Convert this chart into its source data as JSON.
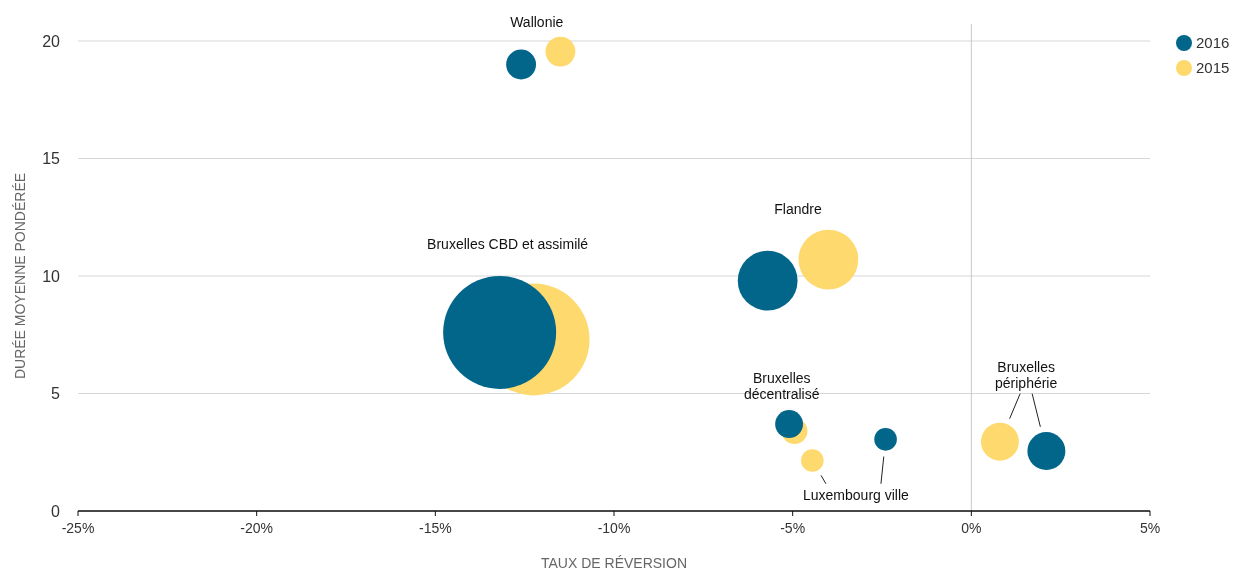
{
  "chart_data": {
    "type": "bubble",
    "xlabel": "TAUX DE RÉVERSION",
    "ylabel": "DURÉE MOYENNE PONDÉRÉE",
    "xlim": [
      -25,
      5
    ],
    "xticks": [
      {
        "value": -25,
        "label": "-25%"
      },
      {
        "value": -20,
        "label": "-20%"
      },
      {
        "value": -15,
        "label": "-15%"
      },
      {
        "value": -10,
        "label": "-10%"
      },
      {
        "value": -5,
        "label": "-5%"
      },
      {
        "value": 0,
        "label": "0%"
      },
      {
        "value": 5,
        "label": "5%"
      }
    ],
    "ylim": [
      0,
      20
    ],
    "yticks": [
      0,
      5,
      10,
      15,
      20
    ],
    "grid": "y",
    "legend": "top right",
    "ref_lines": [
      {
        "axis": "x",
        "value": 0,
        "color": "#c8c8c8"
      }
    ],
    "series": [
      {
        "name": "2016",
        "color": "#02668a",
        "x": [
          -12.6,
          -13.2,
          -5.7,
          -5.1,
          -2.4,
          2.1
        ],
        "values": [
          19.0,
          7.6,
          9.8,
          3.7,
          3.05,
          2.55
        ],
        "sizes": [
          0.07,
          1,
          0.28,
          0.061,
          0.04,
          0.113
        ]
      },
      {
        "name": "2015",
        "color": "#fed96e",
        "x": [
          -11.5,
          -12.25,
          -4.0,
          -4.95,
          -4.45,
          0.8
        ],
        "values": [
          19.55,
          7.3,
          10.7,
          3.4,
          2.15,
          2.95
        ],
        "sizes": [
          0.07,
          0.98,
          0.28,
          0.053,
          0.04,
          0.113
        ]
      }
    ],
    "annotations": [
      "Wallonie",
      "Bruxelles CBD et assimilé",
      "Flandre",
      "Bruxelles\ndécentralisé",
      "Luxembourg ville",
      "Bruxelles\npériphérie"
    ]
  }
}
